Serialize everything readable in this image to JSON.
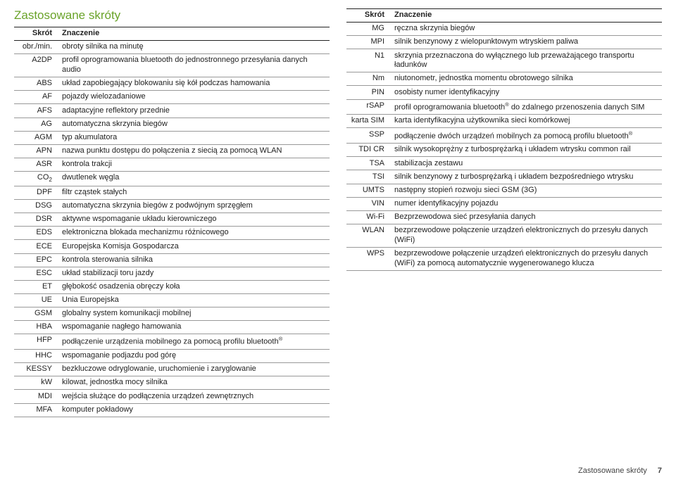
{
  "title": "Zastosowane skróty",
  "header_abbrev": "Skrót",
  "header_meaning": "Znaczenie",
  "left_rows": [
    {
      "k": "obr./min.",
      "v": "obroty silnika na minutę"
    },
    {
      "k": "A2DP",
      "v": "profil oprogramowania bluetooth do jednostronnego przesyłania danych audio"
    },
    {
      "k": "ABS",
      "v": "układ zapobiegający blokowaniu się kół podczas hamowania"
    },
    {
      "k": "AF",
      "v": "pojazdy wielozadaniowe"
    },
    {
      "k": "AFS",
      "v": "adaptacyjne reflektory przednie"
    },
    {
      "k": "AG",
      "v": "automatyczna skrzynia biegów"
    },
    {
      "k": "AGM",
      "v": "typ akumulatora"
    },
    {
      "k": "APN",
      "v": "nazwa punktu dostępu do połączenia z siecią za pomocą WLAN"
    },
    {
      "k": "ASR",
      "v": "kontrola trakcji"
    },
    {
      "k": "CO₂",
      "v": "dwutlenek węgla"
    },
    {
      "k": "DPF",
      "v": "filtr cząstek stałych"
    },
    {
      "k": "DSG",
      "v": "automatyczna skrzynia biegów z podwójnym sprzęgłem"
    },
    {
      "k": "DSR",
      "v": "aktywne wspomaganie układu kierowniczego"
    },
    {
      "k": "EDS",
      "v": "elektroniczna blokada mechanizmu różnicowego"
    },
    {
      "k": "ECE",
      "v": "Europejska Komisja Gospodarcza"
    },
    {
      "k": "EPC",
      "v": "kontrola sterowania silnika"
    },
    {
      "k": "ESC",
      "v": "układ stabilizacji toru jazdy"
    },
    {
      "k": "ET",
      "v": "głębokość osadzenia obręczy koła"
    },
    {
      "k": "UE",
      "v": "Unia Europejska"
    },
    {
      "k": "GSM",
      "v": "globalny system komunikacji mobilnej"
    },
    {
      "k": "HBA",
      "v": "wspomaganie nagłego hamowania"
    },
    {
      "k": "HFP",
      "v": "podłączenie urządzenia mobilnego za pomocą profilu bluetooth®"
    },
    {
      "k": "HHC",
      "v": "wspomaganie podjazdu pod górę"
    },
    {
      "k": "KESSY",
      "v": "bezkluczowe odryglowanie, uruchomienie i zaryglowanie"
    },
    {
      "k": "kW",
      "v": "kilowat, jednostka mocy silnika"
    },
    {
      "k": "MDI",
      "v": "wejścia służące do podłączenia urządzeń zewnętrznych"
    },
    {
      "k": "MFA",
      "v": "komputer pokładowy"
    }
  ],
  "right_rows": [
    {
      "k": "MG",
      "v": "ręczna skrzynia biegów"
    },
    {
      "k": "MPI",
      "v": "silnik benzynowy z wielopunktowym wtryskiem paliwa"
    },
    {
      "k": "N1",
      "v": "skrzynia przeznaczona do wyłącznego lub przeważającego transportu ładunków"
    },
    {
      "k": "Nm",
      "v": "niutonometr, jednostka momentu obrotowego silnika"
    },
    {
      "k": "PIN",
      "v": "osobisty numer identyfikacyjny"
    },
    {
      "k": "rSAP",
      "v": "profil oprogramowania bluetooth® do zdalnego przenoszenia danych SIM"
    },
    {
      "k": "karta SIM",
      "v": "karta identyfikacyjna użytkownika sieci komórkowej"
    },
    {
      "k": "SSP",
      "v": "podłączenie dwóch urządzeń mobilnych za pomocą profilu bluetooth®"
    },
    {
      "k": "TDI CR",
      "v": "silnik wysokoprężny z turbosprężarką i układem wtrysku common rail"
    },
    {
      "k": "TSA",
      "v": "stabilizacja zestawu"
    },
    {
      "k": "TSI",
      "v": "silnik benzynowy z turbosprężarką i układem bezpośredniego wtrysku"
    },
    {
      "k": "UMTS",
      "v": "następny stopień rozwoju sieci GSM (3G)"
    },
    {
      "k": "VIN",
      "v": "numer identyfikacyjny pojazdu"
    },
    {
      "k": "Wi-Fi",
      "v": "Bezprzewodowa sieć przesyłania danych"
    },
    {
      "k": "WLAN",
      "v": "bezprzewodowe połączenie urządzeń elektronicznych do przesyłu danych (WiFi)"
    },
    {
      "k": "WPS",
      "v": "bezprzewodowe połączenie urządzeń elektronicznych do przesyłu danych (WiFi) za pomocą automatycznie wygenerowanego klucza"
    }
  ],
  "footer_text": "Zastosowane skróty",
  "footer_page": "7"
}
